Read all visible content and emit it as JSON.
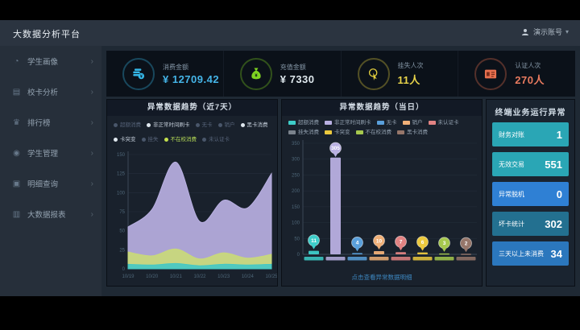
{
  "header": {
    "app_title": "大数据分析平台",
    "user": {
      "name": "演示账号",
      "caret": "▾"
    }
  },
  "sidebar": {
    "chevron": "›",
    "items": [
      {
        "label": "学生画像",
        "icon": "student-portrait-icon",
        "glyph": "◔"
      },
      {
        "label": "校卡分析",
        "icon": "card-analysis-icon",
        "glyph": "▤"
      },
      {
        "label": "排行榜",
        "icon": "ranking-icon",
        "glyph": "♛"
      },
      {
        "label": "学生管理",
        "icon": "student-manage-icon",
        "glyph": "◉"
      },
      {
        "label": "明细查询",
        "icon": "detail-query-icon",
        "glyph": "▣"
      },
      {
        "label": "大数据报表",
        "icon": "report-icon",
        "glyph": "▥"
      }
    ]
  },
  "kpis": [
    {
      "label": "消费金额",
      "value": "¥ 12709.42",
      "value_color": "#45b5e8",
      "icon": "coins-icon",
      "icon_color": "#35b8e8"
    },
    {
      "label": "充值金额",
      "value": "¥ 7330",
      "value_color": "#dfe9ee",
      "icon": "money-bag-icon",
      "icon_color": "#7ed321"
    },
    {
      "label": "挂失人次",
      "value": "11人",
      "value_color": "#e8d44a",
      "icon": "hand-click-icon",
      "icon_color": "#e3cf3e"
    },
    {
      "label": "认证人次",
      "value": "270人",
      "value_color": "#e87a5f",
      "icon": "id-card-icon",
      "icon_color": "#e8704f"
    }
  ],
  "chart_data": [
    {
      "type": "area",
      "title": "异常数据趋势（近7天）",
      "x": [
        "10/19",
        "10/20",
        "10/21",
        "10/22",
        "10/23",
        "10/24",
        "10/25"
      ],
      "ylim": [
        0,
        150
      ],
      "yticks": [
        0,
        25,
        50,
        75,
        100,
        125,
        150
      ],
      "grid": true,
      "legend_position": "top",
      "legend": [
        {
          "label": "超额消费",
          "state": "off"
        },
        {
          "label": "非正常时间刷卡",
          "state": "on"
        },
        {
          "label": "无卡",
          "state": "off"
        },
        {
          "label": "销户",
          "state": "off"
        },
        {
          "label": "黑卡消费",
          "state": "on"
        },
        {
          "label": "卡突变",
          "state": "on"
        },
        {
          "label": "挂失",
          "state": "off"
        },
        {
          "label": "不在校消费",
          "state": "active"
        },
        {
          "label": "未认证卡",
          "state": "off"
        }
      ],
      "series": [
        {
          "name": "非正常时间刷卡",
          "color": "#b9b0e2",
          "values": [
            55,
            78,
            140,
            62,
            90,
            80,
            125
          ]
        },
        {
          "name": "不在校消费",
          "color": "#c9d97a",
          "values": [
            22,
            17,
            26,
            13,
            21,
            14,
            19
          ]
        },
        {
          "name": "卡突变",
          "color": "#45c8c4",
          "values": [
            6,
            5,
            7,
            4,
            6,
            5,
            6
          ]
        }
      ]
    },
    {
      "type": "bar",
      "title": "异常数据趋势（当日）",
      "legend_position": "top",
      "legend": [
        {
          "label": "超额消费",
          "color": "#3ecdc9"
        },
        {
          "label": "非正常时间刷卡",
          "color": "#b9b0e2"
        },
        {
          "label": "无卡",
          "color": "#5aa0dc"
        },
        {
          "label": "销户",
          "color": "#f0b078"
        },
        {
          "label": "未认证卡",
          "color": "#e28383"
        },
        {
          "label": "挂失消费",
          "color": "#7a828c"
        },
        {
          "label": "卡突变",
          "color": "#ecc93e"
        },
        {
          "label": "不在校消费",
          "color": "#a6c84e"
        },
        {
          "label": "黑卡消费",
          "color": "#96766a"
        }
      ],
      "categories": [
        "超额消费",
        "非正常时间刷卡",
        "无卡",
        "销户",
        "未认证卡",
        "卡突变",
        "不在校消费",
        "黑卡消费"
      ],
      "values": [
        11,
        305,
        4,
        10,
        7,
        6,
        3,
        2
      ],
      "colors": [
        "#3ecdc9",
        "#b9b0e2",
        "#5aa0dc",
        "#f0b078",
        "#e28383",
        "#ecc93e",
        "#a6c84e",
        "#96766a"
      ],
      "ylim": [
        0,
        350
      ],
      "yticks": [
        0,
        50,
        100,
        150,
        200,
        250,
        300,
        350
      ],
      "footer_link": "点击查看异常数据明细"
    }
  ],
  "terminal_panel": {
    "title": "终端业务运行异常",
    "rows": [
      {
        "label": "财务对账",
        "value": "1",
        "bg": "#2aa6b5"
      },
      {
        "label": "无效交易",
        "value": "551",
        "bg": "#2aa6b5"
      },
      {
        "label": "异常脱机",
        "value": "0",
        "bg": "#2f80d4"
      },
      {
        "label": "坏卡统计",
        "value": "302",
        "bg": "#237090"
      },
      {
        "label": "三天以上未消费",
        "value": "34",
        "bg": "#2b77bd"
      }
    ]
  }
}
